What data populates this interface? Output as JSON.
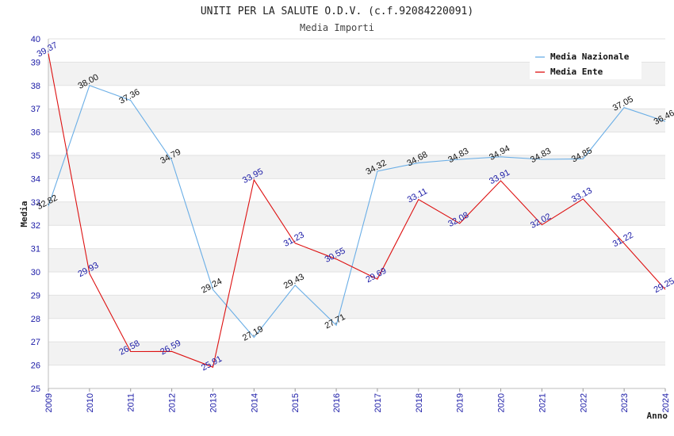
{
  "chart_data": {
    "type": "line",
    "title": "UNITI PER LA SALUTE O.D.V. (c.f.92084220091)",
    "subtitle": "Media Importi",
    "xlabel": "Anno",
    "ylabel": "Media",
    "ylim": [
      25,
      40
    ],
    "yticks": [
      "25",
      "26",
      "27",
      "28",
      "29",
      "30",
      "31",
      "32",
      "33",
      "34",
      "35",
      "36",
      "37",
      "38",
      "39",
      "40"
    ],
    "categories": [
      "2009",
      "2010",
      "2011",
      "2012",
      "2013",
      "2014",
      "2015",
      "2016",
      "2017",
      "2018",
      "2019",
      "2020",
      "2021",
      "2022",
      "2023",
      "2024"
    ],
    "series": [
      {
        "name": "Media Nazionale",
        "color": "#6aaee6",
        "label_color": "#111111",
        "values": [
          32.82,
          38.0,
          37.36,
          34.79,
          29.24,
          27.19,
          29.43,
          27.71,
          34.32,
          34.68,
          34.83,
          34.94,
          34.83,
          34.85,
          37.05,
          36.46
        ],
        "labels": [
          "32.82",
          "38.00",
          "37.36",
          "34.79",
          "29.24",
          "27.19",
          "29.43",
          "27.71",
          "34.32",
          "34.68",
          "34.83",
          "34.94",
          "34.83",
          "34.85",
          "37.05",
          "36.46"
        ]
      },
      {
        "name": "Media Ente",
        "color": "#dd1111",
        "label_color": "#1a1aa6",
        "values": [
          39.37,
          29.93,
          26.58,
          26.59,
          25.91,
          33.95,
          31.23,
          30.55,
          29.69,
          33.11,
          32.08,
          33.91,
          32.02,
          33.13,
          31.22,
          29.25
        ],
        "labels": [
          "39.37",
          "29.93",
          "26.58",
          "26.59",
          "25.91",
          "33.95",
          "31.23",
          "30.55",
          "29.69",
          "33.11",
          "32.08",
          "33.91",
          "32.02",
          "33.13",
          "31.22",
          "29.25"
        ]
      }
    ],
    "grid": true,
    "legend_position": "top-right"
  }
}
